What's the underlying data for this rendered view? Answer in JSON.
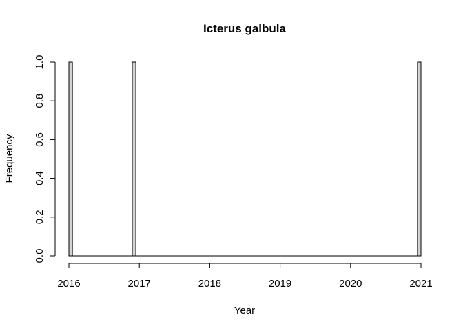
{
  "chart_data": {
    "type": "bar",
    "title": "Icterus galbula",
    "xlabel": "Year",
    "ylabel": "Frequency",
    "xlim": [
      2016,
      2021
    ],
    "ylim": [
      0,
      1
    ],
    "x_ticks": [
      "2016",
      "2017",
      "2018",
      "2019",
      "2020",
      "2021"
    ],
    "y_ticks": [
      "0.0",
      "0.2",
      "0.4",
      "0.6",
      "0.8",
      "1.0"
    ],
    "bin_width": 0.05,
    "bins": [
      {
        "start": 2016.0,
        "end": 2016.05,
        "count": 1
      },
      {
        "start": 2016.9,
        "end": 2016.95,
        "count": 1
      },
      {
        "start": 2020.95,
        "end": 2021.0,
        "count": 1
      }
    ],
    "bar_fill": "#d3d3d3",
    "bar_stroke": "#000000",
    "grid": false
  }
}
